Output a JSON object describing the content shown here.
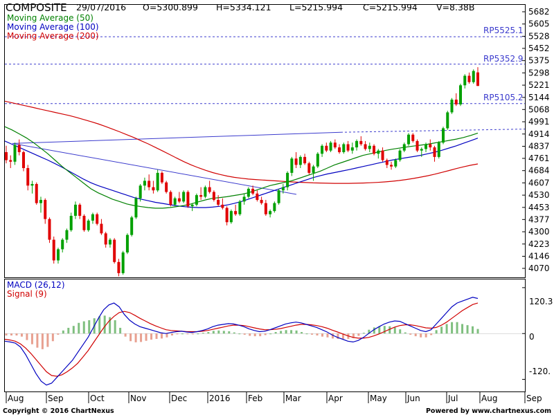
{
  "chart_data": {
    "type": "candlestick",
    "title": "COMPOSITE",
    "quote": {
      "date": "29/07/2016",
      "open": "O=5300.899",
      "high": "H=5334.121",
      "low": "L=5215.994",
      "close": "C=5215.994",
      "volume": "V=8.38B"
    },
    "legend": [
      {
        "name": "Moving Average (50)",
        "color": "#008000"
      },
      {
        "name": "Moving Average (100)",
        "color": "#0000c0"
      },
      {
        "name": "Moving Average (200)",
        "color": "#d00000"
      }
    ],
    "price_ticks": [
      "5682",
      "5605",
      "5528",
      "5452",
      "5375",
      "5298",
      "5221",
      "5144",
      "5068",
      "4991",
      "4914",
      "4837",
      "4761",
      "4684",
      "4607",
      "4530",
      "4453",
      "4377",
      "4300",
      "4223",
      "4146",
      "4070"
    ],
    "ylim": [
      4000,
      5700
    ],
    "resistance_lines": [
      {
        "label": "RP5525.1",
        "value": 5525.1
      },
      {
        "label": "RP5352.9",
        "value": 5352.9
      },
      {
        "label": "RP5105.2",
        "value": 5105.2
      }
    ],
    "x_labels": [
      "Aug",
      "Sep",
      "Oct",
      "Nov",
      "Dec",
      "2016",
      "Feb",
      "Mar",
      "Apr",
      "May",
      "Jun",
      "Jul",
      "Aug",
      "Sep"
    ],
    "bullish_color": "#00a000",
    "bearish_color": "#e00000",
    "macd": {
      "legend": [
        {
          "name": "MACD (26,12)",
          "color": "#0000c0"
        },
        {
          "name": "Signal (9)",
          "color": "#d00000"
        }
      ],
      "ticks": [
        "120.3",
        "0",
        "-120."
      ],
      "ylim": [
        -150,
        140
      ]
    },
    "ohlc": [
      [
        4800,
        4840,
        4730,
        4750
      ],
      [
        4750,
        4780,
        4700,
        4740
      ],
      [
        4740,
        4860,
        4720,
        4845
      ],
      [
        4845,
        4880,
        4780,
        4800
      ],
      [
        4800,
        4810,
        4680,
        4700
      ],
      [
        4700,
        4720,
        4560,
        4590
      ],
      [
        4590,
        4620,
        4540,
        4600
      ],
      [
        4600,
        4610,
        4470,
        4480
      ],
      [
        4480,
        4520,
        4420,
        4500
      ],
      [
        4500,
        4510,
        4350,
        4380
      ],
      [
        4380,
        4390,
        4230,
        4250
      ],
      [
        4250,
        4270,
        4100,
        4120
      ],
      [
        4120,
        4200,
        4100,
        4190
      ],
      [
        4190,
        4260,
        4170,
        4250
      ],
      [
        4250,
        4320,
        4230,
        4310
      ],
      [
        4310,
        4420,
        4300,
        4400
      ],
      [
        4400,
        4490,
        4380,
        4470
      ],
      [
        4470,
        4480,
        4380,
        4400
      ],
      [
        4400,
        4410,
        4300,
        4310
      ],
      [
        4310,
        4380,
        4300,
        4370
      ],
      [
        4370,
        4420,
        4350,
        4410
      ],
      [
        4410,
        4420,
        4340,
        4350
      ],
      [
        4350,
        4380,
        4280,
        4290
      ],
      [
        4290,
        4300,
        4200,
        4220
      ],
      [
        4220,
        4260,
        4200,
        4250
      ],
      [
        4250,
        4260,
        4100,
        4110
      ],
      [
        4110,
        4130,
        4020,
        4040
      ],
      [
        4040,
        4180,
        4030,
        4170
      ],
      [
        4170,
        4290,
        4160,
        4280
      ],
      [
        4280,
        4400,
        4270,
        4390
      ],
      [
        4390,
        4520,
        4380,
        4510
      ],
      [
        4510,
        4600,
        4490,
        4590
      ],
      [
        4590,
        4640,
        4560,
        4620
      ],
      [
        4620,
        4660,
        4560,
        4580
      ],
      [
        4580,
        4620,
        4540,
        4560
      ],
      [
        4560,
        4690,
        4550,
        4670
      ],
      [
        4670,
        4680,
        4600,
        4610
      ],
      [
        4610,
        4620,
        4540,
        4550
      ],
      [
        4550,
        4560,
        4460,
        4470
      ],
      [
        4470,
        4520,
        4460,
        4510
      ],
      [
        4510,
        4550,
        4480,
        4490
      ],
      [
        4490,
        4560,
        4480,
        4550
      ],
      [
        4550,
        4560,
        4450,
        4460
      ],
      [
        4460,
        4480,
        4430,
        4470
      ],
      [
        4470,
        4540,
        4460,
        4530
      ],
      [
        4530,
        4580,
        4500,
        4520
      ],
      [
        4520,
        4590,
        4510,
        4580
      ],
      [
        4580,
        4620,
        4540,
        4550
      ],
      [
        4550,
        4560,
        4490,
        4500
      ],
      [
        4500,
        4530,
        4460,
        4470
      ],
      [
        4470,
        4510,
        4440,
        4450
      ],
      [
        4450,
        4460,
        4340,
        4360
      ],
      [
        4360,
        4440,
        4350,
        4430
      ],
      [
        4430,
        4470,
        4400,
        4410
      ],
      [
        4410,
        4500,
        4400,
        4490
      ],
      [
        4490,
        4540,
        4470,
        4520
      ],
      [
        4520,
        4580,
        4510,
        4570
      ],
      [
        4570,
        4590,
        4530,
        4540
      ],
      [
        4540,
        4560,
        4490,
        4500
      ],
      [
        4500,
        4520,
        4470,
        4480
      ],
      [
        4480,
        4500,
        4400,
        4410
      ],
      [
        4410,
        4440,
        4390,
        4430
      ],
      [
        4430,
        4490,
        4420,
        4480
      ],
      [
        4480,
        4570,
        4470,
        4560
      ],
      [
        4560,
        4600,
        4540,
        4580
      ],
      [
        4580,
        4680,
        4560,
        4670
      ],
      [
        4670,
        4770,
        4650,
        4760
      ],
      [
        4760,
        4800,
        4700,
        4720
      ],
      [
        4720,
        4780,
        4700,
        4770
      ],
      [
        4770,
        4790,
        4720,
        4730
      ],
      [
        4730,
        4740,
        4660,
        4670
      ],
      [
        4670,
        4720,
        4620,
        4710
      ],
      [
        4710,
        4800,
        4700,
        4790
      ],
      [
        4790,
        4850,
        4770,
        4840
      ],
      [
        4840,
        4860,
        4800,
        4810
      ],
      [
        4810,
        4870,
        4800,
        4860
      ],
      [
        4860,
        4880,
        4820,
        4830
      ],
      [
        4830,
        4850,
        4790,
        4800
      ],
      [
        4800,
        4860,
        4790,
        4850
      ],
      [
        4850,
        4870,
        4800,
        4810
      ],
      [
        4810,
        4860,
        4790,
        4830
      ],
      [
        4830,
        4880,
        4810,
        4870
      ],
      [
        4870,
        4900,
        4840,
        4850
      ],
      [
        4850,
        4870,
        4810,
        4820
      ],
      [
        4820,
        4860,
        4800,
        4840
      ],
      [
        4840,
        4850,
        4780,
        4790
      ],
      [
        4790,
        4820,
        4760,
        4810
      ],
      [
        4810,
        4830,
        4740,
        4750
      ],
      [
        4750,
        4760,
        4700,
        4720
      ],
      [
        4720,
        4740,
        4690,
        4710
      ],
      [
        4710,
        4760,
        4700,
        4750
      ],
      [
        4750,
        4820,
        4740,
        4810
      ],
      [
        4810,
        4860,
        4800,
        4850
      ],
      [
        4850,
        4920,
        4840,
        4910
      ],
      [
        4910,
        4920,
        4860,
        4870
      ],
      [
        4870,
        4880,
        4800,
        4810
      ],
      [
        4810,
        4830,
        4770,
        4820
      ],
      [
        4820,
        4860,
        4800,
        4850
      ],
      [
        4850,
        4880,
        4810,
        4830
      ],
      [
        4830,
        4840,
        4740,
        4770
      ],
      [
        4770,
        4870,
        4760,
        4860
      ],
      [
        4860,
        4960,
        4850,
        4950
      ],
      [
        4950,
        5060,
        4940,
        5050
      ],
      [
        5050,
        5140,
        5040,
        5130
      ],
      [
        5130,
        5170,
        5090,
        5100
      ],
      [
        5100,
        5230,
        5090,
        5220
      ],
      [
        5220,
        5290,
        5200,
        5280
      ],
      [
        5280,
        5300,
        5230,
        5240
      ],
      [
        5240,
        5320,
        5230,
        5310
      ],
      [
        5301,
        5334,
        5216,
        5216
      ]
    ],
    "ma50": [
      4960,
      4940,
      4915,
      4890,
      4860,
      4825,
      4790,
      4750,
      4710,
      4675,
      4640,
      4605,
      4570,
      4545,
      4525,
      4505,
      4490,
      4475,
      4465,
      4458,
      4452,
      4448,
      4448,
      4452,
      4458,
      4465,
      4475,
      4488,
      4500,
      4510,
      4515,
      4520,
      4528,
      4535,
      4545,
      4560,
      4575,
      4590,
      4600,
      4610,
      4620,
      4635,
      4650,
      4665,
      4680,
      4700,
      4720,
      4735,
      4750,
      4765,
      4780,
      4790,
      4800,
      4810,
      4818,
      4825,
      4832,
      4838,
      4844,
      4850,
      4858,
      4866,
      4874,
      4882,
      4892,
      4905,
      4920
    ],
    "ma100": [
      4870,
      4850,
      4830,
      4810,
      4790,
      4770,
      4750,
      4728,
      4705,
      4680,
      4655,
      4630,
      4608,
      4590,
      4575,
      4560,
      4545,
      4530,
      4515,
      4505,
      4495,
      4485,
      4478,
      4470,
      4463,
      4458,
      4454,
      4452,
      4452,
      4455,
      4460,
      4468,
      4478,
      4490,
      4505,
      4520,
      4535,
      4550,
      4565,
      4580,
      4595,
      4610,
      4625,
      4640,
      4652,
      4663,
      4672,
      4681,
      4690,
      4700,
      4710,
      4720,
      4730,
      4740,
      4750,
      4758,
      4765,
      4772,
      4780,
      4790,
      4800,
      4812,
      4826,
      4840,
      4856,
      4872,
      4888
    ],
    "ma200": [
      5120,
      5110,
      5100,
      5090,
      5080,
      5070,
      5060,
      5050,
      5040,
      5030,
      5018,
      5005,
      4992,
      4978,
      4962,
      4945,
      4928,
      4910,
      4892,
      4872,
      4852,
      4830,
      4808,
      4785,
      4762,
      4740,
      4720,
      4702,
      4686,
      4672,
      4660,
      4650,
      4642,
      4636,
      4631,
      4628,
      4625,
      4622,
      4619,
      4616,
      4613,
      4611,
      4609,
      4607,
      4606,
      4605,
      4604,
      4604,
      4604,
      4605,
      4606,
      4608,
      4610,
      4613,
      4617,
      4622,
      4628,
      4635,
      4643,
      4652,
      4662,
      4673,
      4685,
      4697,
      4708,
      4718,
      4726
    ],
    "macd_line": [
      -20,
      -22,
      -25,
      -35,
      -55,
      -80,
      -105,
      -125,
      -135,
      -130,
      -115,
      -100,
      -85,
      -70,
      -50,
      -30,
      -10,
      15,
      40,
      62,
      75,
      80,
      70,
      50,
      35,
      25,
      18,
      14,
      10,
      6,
      2,
      0,
      3,
      5,
      6,
      4,
      3,
      5,
      8,
      12,
      18,
      22,
      24,
      26,
      25,
      22,
      18,
      12,
      8,
      5,
      6,
      10,
      15,
      20,
      25,
      28,
      30,
      28,
      24,
      20,
      16,
      10,
      4,
      -4,
      -10,
      -15,
      -20,
      -22,
      -18,
      -10,
      0,
      10,
      18,
      25,
      30,
      33,
      32,
      26,
      20,
      14,
      8,
      5,
      10,
      25,
      40,
      55,
      70,
      80,
      85,
      90,
      95,
      92
    ],
    "signal_line": [
      -15,
      -17,
      -20,
      -27,
      -38,
      -52,
      -68,
      -84,
      -100,
      -110,
      -112,
      -108,
      -100,
      -90,
      -78,
      -62,
      -45,
      -25,
      -5,
      15,
      32,
      45,
      55,
      58,
      55,
      48,
      40,
      33,
      26,
      20,
      15,
      10,
      8,
      7,
      6,
      5,
      5,
      5,
      6,
      8,
      11,
      14,
      17,
      20,
      22,
      22,
      21,
      18,
      15,
      12,
      10,
      10,
      11,
      13,
      16,
      19,
      22,
      24,
      24,
      23,
      21,
      18,
      14,
      9,
      4,
      -1,
      -6,
      -10,
      -12,
      -12,
      -10,
      -6,
      -1,
      5,
      11,
      17,
      21,
      23,
      23,
      21,
      18,
      15,
      14,
      16,
      22,
      30,
      40,
      50,
      60,
      68,
      76,
      80
    ],
    "hist": [
      -5,
      -5,
      -5,
      -8,
      -17,
      -28,
      -37,
      -41,
      -35,
      -20,
      -3,
      8,
      15,
      20,
      28,
      32,
      35,
      40,
      45,
      47,
      43,
      35,
      15,
      -8,
      -20,
      -23,
      -22,
      -19,
      -16,
      -14,
      -13,
      -10,
      -5,
      -2,
      0,
      -1,
      -2,
      0,
      2,
      4,
      7,
      8,
      7,
      6,
      3,
      0,
      -3,
      -6,
      -7,
      -7,
      -4,
      0,
      4,
      7,
      9,
      9,
      8,
      4,
      0,
      -3,
      -5,
      -8,
      -10,
      -13,
      -14,
      -14,
      -14,
      -12,
      -6,
      2,
      10,
      16,
      19,
      20,
      19,
      16,
      11,
      3,
      -3,
      -7,
      -10,
      -10,
      -4,
      9,
      18,
      25,
      30,
      30,
      25,
      22,
      19,
      12
    ]
  },
  "footer": {
    "copyright": "Copyright © 2016 ChartNexus",
    "powered": "Powered by www.chartnexus.com"
  }
}
